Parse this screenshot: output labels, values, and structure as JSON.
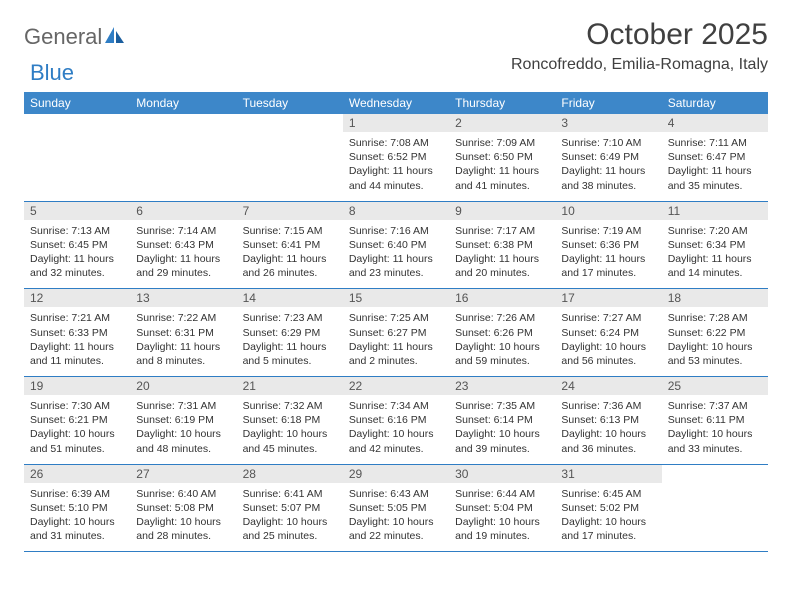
{
  "logo": {
    "text1": "General",
    "text2": "Blue"
  },
  "title": "October 2025",
  "location": "Roncofreddo, Emilia-Romagna, Italy",
  "colors": {
    "header_bg": "#3d87c9",
    "header_text": "#ffffff",
    "daynum_bg": "#e9e9e9",
    "border": "#2f7dc4",
    "logo_gray": "#666666",
    "logo_blue": "#2f7dc4"
  },
  "day_headers": [
    "Sunday",
    "Monday",
    "Tuesday",
    "Wednesday",
    "Thursday",
    "Friday",
    "Saturday"
  ],
  "weeks": [
    [
      {
        "num": "",
        "sunrise": "",
        "sunset": "",
        "daylight": ""
      },
      {
        "num": "",
        "sunrise": "",
        "sunset": "",
        "daylight": ""
      },
      {
        "num": "",
        "sunrise": "",
        "sunset": "",
        "daylight": ""
      },
      {
        "num": "1",
        "sunrise": "Sunrise: 7:08 AM",
        "sunset": "Sunset: 6:52 PM",
        "daylight": "Daylight: 11 hours and 44 minutes."
      },
      {
        "num": "2",
        "sunrise": "Sunrise: 7:09 AM",
        "sunset": "Sunset: 6:50 PM",
        "daylight": "Daylight: 11 hours and 41 minutes."
      },
      {
        "num": "3",
        "sunrise": "Sunrise: 7:10 AM",
        "sunset": "Sunset: 6:49 PM",
        "daylight": "Daylight: 11 hours and 38 minutes."
      },
      {
        "num": "4",
        "sunrise": "Sunrise: 7:11 AM",
        "sunset": "Sunset: 6:47 PM",
        "daylight": "Daylight: 11 hours and 35 minutes."
      }
    ],
    [
      {
        "num": "5",
        "sunrise": "Sunrise: 7:13 AM",
        "sunset": "Sunset: 6:45 PM",
        "daylight": "Daylight: 11 hours and 32 minutes."
      },
      {
        "num": "6",
        "sunrise": "Sunrise: 7:14 AM",
        "sunset": "Sunset: 6:43 PM",
        "daylight": "Daylight: 11 hours and 29 minutes."
      },
      {
        "num": "7",
        "sunrise": "Sunrise: 7:15 AM",
        "sunset": "Sunset: 6:41 PM",
        "daylight": "Daylight: 11 hours and 26 minutes."
      },
      {
        "num": "8",
        "sunrise": "Sunrise: 7:16 AM",
        "sunset": "Sunset: 6:40 PM",
        "daylight": "Daylight: 11 hours and 23 minutes."
      },
      {
        "num": "9",
        "sunrise": "Sunrise: 7:17 AM",
        "sunset": "Sunset: 6:38 PM",
        "daylight": "Daylight: 11 hours and 20 minutes."
      },
      {
        "num": "10",
        "sunrise": "Sunrise: 7:19 AM",
        "sunset": "Sunset: 6:36 PM",
        "daylight": "Daylight: 11 hours and 17 minutes."
      },
      {
        "num": "11",
        "sunrise": "Sunrise: 7:20 AM",
        "sunset": "Sunset: 6:34 PM",
        "daylight": "Daylight: 11 hours and 14 minutes."
      }
    ],
    [
      {
        "num": "12",
        "sunrise": "Sunrise: 7:21 AM",
        "sunset": "Sunset: 6:33 PM",
        "daylight": "Daylight: 11 hours and 11 minutes."
      },
      {
        "num": "13",
        "sunrise": "Sunrise: 7:22 AM",
        "sunset": "Sunset: 6:31 PM",
        "daylight": "Daylight: 11 hours and 8 minutes."
      },
      {
        "num": "14",
        "sunrise": "Sunrise: 7:23 AM",
        "sunset": "Sunset: 6:29 PM",
        "daylight": "Daylight: 11 hours and 5 minutes."
      },
      {
        "num": "15",
        "sunrise": "Sunrise: 7:25 AM",
        "sunset": "Sunset: 6:27 PM",
        "daylight": "Daylight: 11 hours and 2 minutes."
      },
      {
        "num": "16",
        "sunrise": "Sunrise: 7:26 AM",
        "sunset": "Sunset: 6:26 PM",
        "daylight": "Daylight: 10 hours and 59 minutes."
      },
      {
        "num": "17",
        "sunrise": "Sunrise: 7:27 AM",
        "sunset": "Sunset: 6:24 PM",
        "daylight": "Daylight: 10 hours and 56 minutes."
      },
      {
        "num": "18",
        "sunrise": "Sunrise: 7:28 AM",
        "sunset": "Sunset: 6:22 PM",
        "daylight": "Daylight: 10 hours and 53 minutes."
      }
    ],
    [
      {
        "num": "19",
        "sunrise": "Sunrise: 7:30 AM",
        "sunset": "Sunset: 6:21 PM",
        "daylight": "Daylight: 10 hours and 51 minutes."
      },
      {
        "num": "20",
        "sunrise": "Sunrise: 7:31 AM",
        "sunset": "Sunset: 6:19 PM",
        "daylight": "Daylight: 10 hours and 48 minutes."
      },
      {
        "num": "21",
        "sunrise": "Sunrise: 7:32 AM",
        "sunset": "Sunset: 6:18 PM",
        "daylight": "Daylight: 10 hours and 45 minutes."
      },
      {
        "num": "22",
        "sunrise": "Sunrise: 7:34 AM",
        "sunset": "Sunset: 6:16 PM",
        "daylight": "Daylight: 10 hours and 42 minutes."
      },
      {
        "num": "23",
        "sunrise": "Sunrise: 7:35 AM",
        "sunset": "Sunset: 6:14 PM",
        "daylight": "Daylight: 10 hours and 39 minutes."
      },
      {
        "num": "24",
        "sunrise": "Sunrise: 7:36 AM",
        "sunset": "Sunset: 6:13 PM",
        "daylight": "Daylight: 10 hours and 36 minutes."
      },
      {
        "num": "25",
        "sunrise": "Sunrise: 7:37 AM",
        "sunset": "Sunset: 6:11 PM",
        "daylight": "Daylight: 10 hours and 33 minutes."
      }
    ],
    [
      {
        "num": "26",
        "sunrise": "Sunrise: 6:39 AM",
        "sunset": "Sunset: 5:10 PM",
        "daylight": "Daylight: 10 hours and 31 minutes."
      },
      {
        "num": "27",
        "sunrise": "Sunrise: 6:40 AM",
        "sunset": "Sunset: 5:08 PM",
        "daylight": "Daylight: 10 hours and 28 minutes."
      },
      {
        "num": "28",
        "sunrise": "Sunrise: 6:41 AM",
        "sunset": "Sunset: 5:07 PM",
        "daylight": "Daylight: 10 hours and 25 minutes."
      },
      {
        "num": "29",
        "sunrise": "Sunrise: 6:43 AM",
        "sunset": "Sunset: 5:05 PM",
        "daylight": "Daylight: 10 hours and 22 minutes."
      },
      {
        "num": "30",
        "sunrise": "Sunrise: 6:44 AM",
        "sunset": "Sunset: 5:04 PM",
        "daylight": "Daylight: 10 hours and 19 minutes."
      },
      {
        "num": "31",
        "sunrise": "Sunrise: 6:45 AM",
        "sunset": "Sunset: 5:02 PM",
        "daylight": "Daylight: 10 hours and 17 minutes."
      },
      {
        "num": "",
        "sunrise": "",
        "sunset": "",
        "daylight": ""
      }
    ]
  ]
}
